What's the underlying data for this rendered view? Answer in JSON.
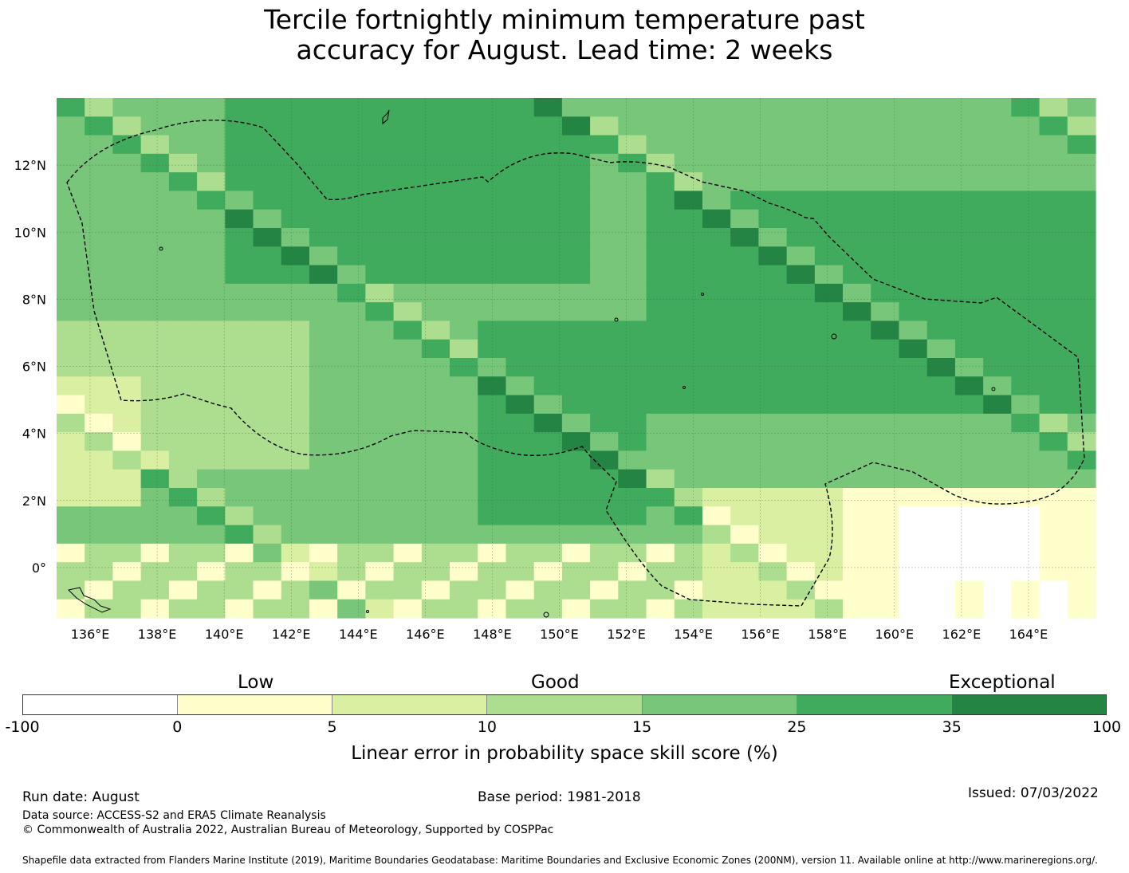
{
  "title_line1": "Tercile fortnightly minimum temperature past",
  "title_line2": "accuracy for August. Lead time: 2 weeks",
  "map": {
    "lon_labels": [
      "136°E",
      "138°E",
      "140°E",
      "142°E",
      "144°E",
      "146°E",
      "148°E",
      "150°E",
      "152°E",
      "154°E",
      "156°E",
      "158°E",
      "160°E",
      "162°E",
      "164°E"
    ],
    "lat_labels": [
      "12°N",
      "10°N",
      "8°N",
      "6°N",
      "4°N",
      "2°N",
      "0°"
    ],
    "lon_range": [
      135.0,
      166.0
    ],
    "lat_range": [
      -1.5,
      14.0
    ],
    "gridlines": true
  },
  "colorbar": {
    "categories": [
      "Low",
      "Good",
      "Exceptional"
    ],
    "ticks": [
      "-100",
      "0",
      "5",
      "10",
      "15",
      "25",
      "35",
      "100"
    ],
    "colors": [
      "#ffffff",
      "#ffffcc",
      "#d9f0a3",
      "#addd8e",
      "#78c679",
      "#41ab5d",
      "#238443"
    ],
    "label": "Linear error in probability space skill score (%)"
  },
  "footer": {
    "run_date": "Run date: August",
    "base_period": "Base period: 1981-2018",
    "issued": "Issued: 07/03/2022",
    "data_source": "Data source: ACCESS-S2 and ERA5 Climate Reanalysis",
    "copyright": "© Commonwealth of Australia 2022, Australian Bureau of Meteorology, Supported by COSPPac",
    "shapefile": "Shapefile data extracted from Flanders Marine Institute (2019), Maritime Boundaries Geodatabase: Maritime Boundaries and Exclusive Economic Zones (200NM), version 11. Available online at http://www.marineregions.org/."
  }
}
